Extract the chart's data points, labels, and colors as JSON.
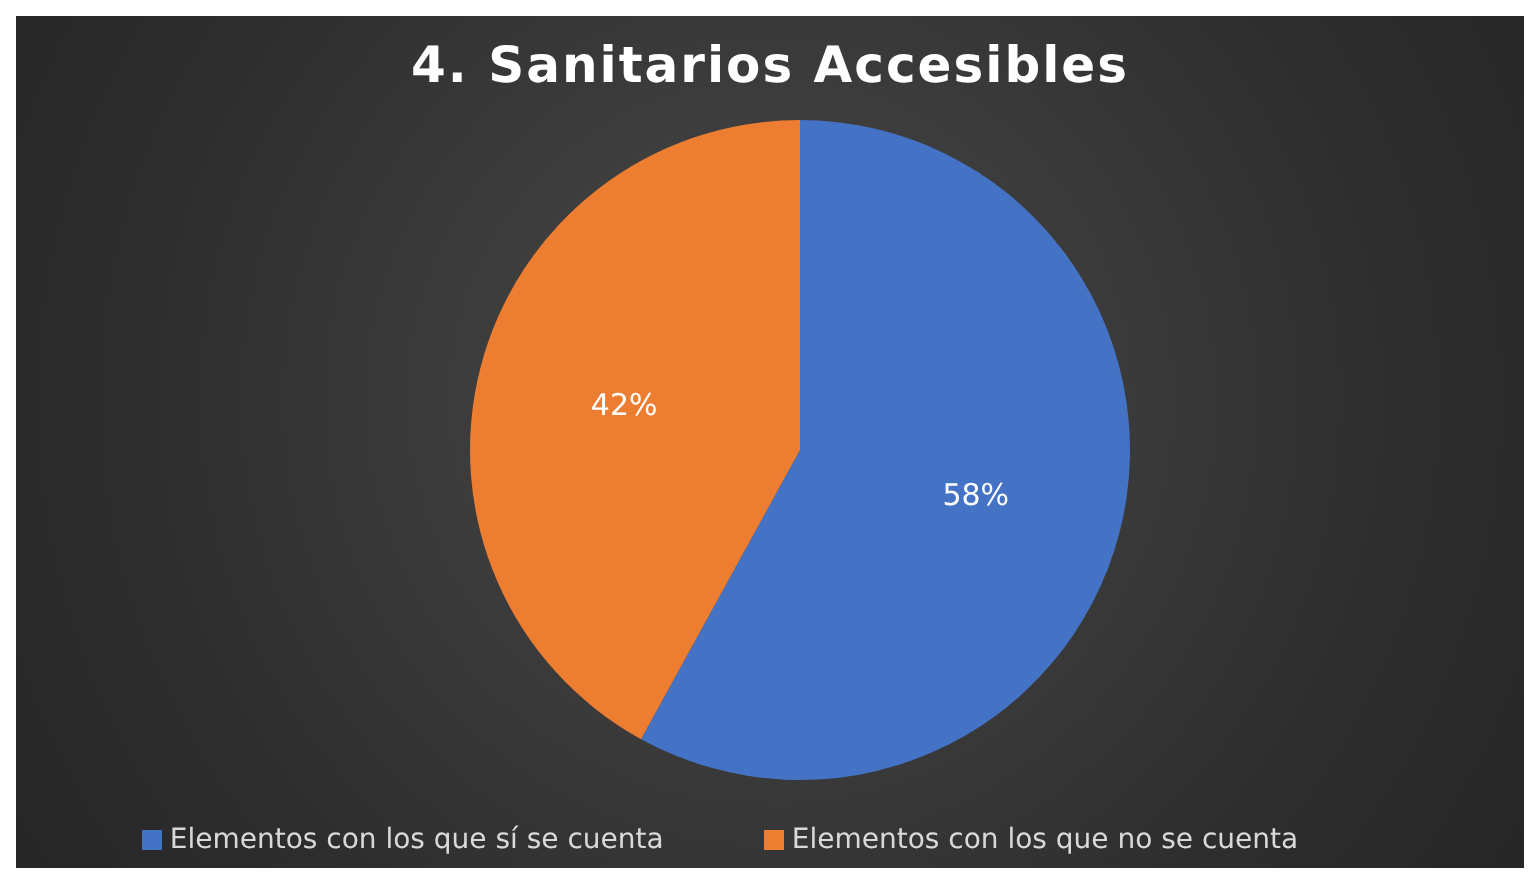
{
  "chart_data": {
    "type": "pie",
    "title": "4. Sanitarios Accesibles",
    "categories": [
      "Elementos con los que sí se cuenta",
      "Elementos con los que no se cuenta"
    ],
    "values": [
      58,
      42
    ],
    "colors": [
      "#4472c4",
      "#ed7d31"
    ],
    "value_labels": [
      "58%",
      "42%"
    ],
    "legend": "bottom"
  }
}
